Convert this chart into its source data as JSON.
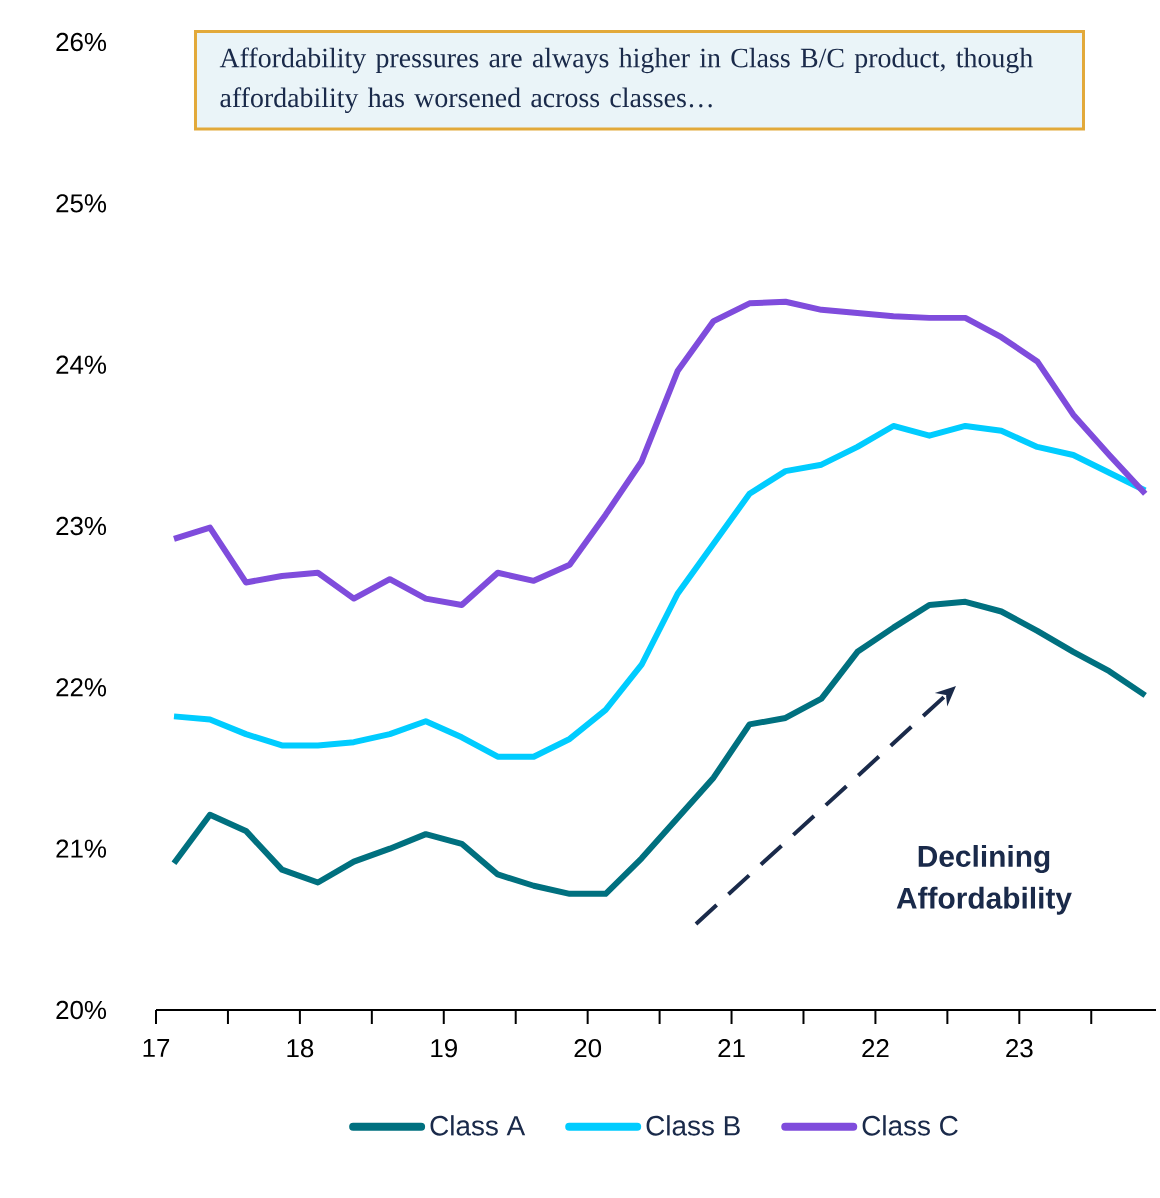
{
  "chart_data": {
    "type": "line",
    "x": [
      17.125,
      17.375,
      17.625,
      17.875,
      18.125,
      18.375,
      18.625,
      18.875,
      19.125,
      19.375,
      19.625,
      19.875,
      20.125,
      20.375,
      20.625,
      20.875,
      21.125,
      21.375,
      21.625,
      21.875,
      22.125,
      22.375,
      22.625,
      22.875,
      23.125,
      23.375,
      23.625,
      23.875
    ],
    "series": [
      {
        "name": "Class A",
        "color": "#00707f",
        "values": [
          20.91,
          21.21,
          21.11,
          20.87,
          20.79,
          20.92,
          21.0,
          21.09,
          21.03,
          20.84,
          20.77,
          20.72,
          20.72,
          20.94,
          21.19,
          21.44,
          21.77,
          21.81,
          21.93,
          22.22,
          22.37,
          22.51,
          22.53,
          22.47,
          22.35,
          22.22,
          22.1,
          21.95
        ]
      },
      {
        "name": "Class B",
        "color": "#00ccff",
        "values": [
          21.82,
          21.8,
          21.71,
          21.64,
          21.64,
          21.66,
          21.71,
          21.79,
          21.69,
          21.57,
          21.57,
          21.68,
          21.86,
          22.14,
          22.58,
          22.89,
          23.2,
          23.34,
          23.38,
          23.49,
          23.62,
          23.56,
          23.62,
          23.59,
          23.49,
          23.44,
          23.33,
          23.22
        ]
      },
      {
        "name": "Class C",
        "color": "#7f4cdc",
        "values": [
          22.92,
          22.99,
          22.65,
          22.69,
          22.71,
          22.55,
          22.67,
          22.55,
          22.51,
          22.71,
          22.66,
          22.76,
          23.07,
          23.4,
          23.96,
          24.27,
          24.38,
          24.39,
          24.34,
          24.32,
          24.3,
          24.29,
          24.29,
          24.17,
          24.02,
          23.69,
          23.44,
          23.2
        ]
      }
    ],
    "xlim": [
      17,
      23.95
    ],
    "xticks": [
      17,
      {
        "value": 17.5,
        "label": null
      },
      18,
      {
        "value": 18.5,
        "label": null
      },
      19,
      {
        "value": 19.5,
        "label": null
      },
      20,
      {
        "value": 20.5,
        "label": null
      },
      21,
      {
        "value": 21.5,
        "label": null
      },
      22,
      {
        "value": 22.5,
        "label": null
      },
      23,
      {
        "value": 23.5,
        "label": null
      }
    ],
    "ylim": [
      20,
      26
    ],
    "yticks": [
      {
        "value": 20,
        "label": "20%"
      },
      {
        "value": 21,
        "label": "21%"
      },
      {
        "value": 22,
        "label": "22%"
      },
      {
        "value": 23,
        "label": "23%"
      },
      {
        "value": 24,
        "label": "24%"
      },
      {
        "value": 25,
        "label": "25%"
      },
      {
        "value": 26,
        "label": "26%"
      }
    ],
    "legend": "bottom",
    "annotations": [
      "Affordability pressures are always higher in Class B/C product, though affordability has worsened across classes…",
      "Declining Affordability"
    ]
  }
}
